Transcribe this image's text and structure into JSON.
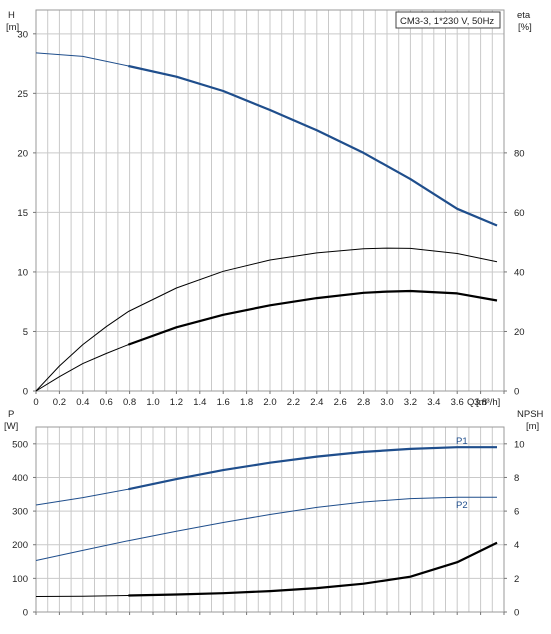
{
  "chart_data": [
    {
      "type": "line",
      "title": "CM3-3, 1*230 V, 50Hz",
      "xlabel": "Q",
      "xunit": "[m³/h]",
      "ylabel": "H",
      "yunit": "[m]",
      "y2label": "eta",
      "y2unit": "[%]",
      "xlim": [
        0,
        4.0
      ],
      "ylim": [
        0,
        32
      ],
      "y2lim": [
        0,
        128
      ],
      "x_ticks": [
        "0",
        "0.2",
        "0.4",
        "0.6",
        "0.8",
        "1.0",
        "1.2",
        "1.4",
        "1.6",
        "1.8",
        "2.0",
        "2.2",
        "2.4",
        "2.6",
        "2.8",
        "3.0",
        "3.2",
        "3.4",
        "3.6",
        "3.8"
      ],
      "y_ticks": [
        "0",
        "5",
        "10",
        "15",
        "20",
        "25",
        "30"
      ],
      "y2_ticks": [
        "0",
        "20",
        "40",
        "60",
        "80"
      ],
      "grid": true,
      "series": [
        {
          "axis": "left",
          "color": "#1f4e8c",
          "style": "head",
          "x": [
            0,
            0.4,
            0.79,
            1.2,
            1.6,
            2.0,
            2.4,
            2.8,
            3.2,
            3.6,
            3.94
          ],
          "values": [
            28.4,
            28.1,
            27.3,
            26.4,
            25.2,
            23.6,
            21.9,
            20.0,
            17.8,
            15.3,
            13.9
          ],
          "bold_from": 0.79
        },
        {
          "axis": "right",
          "color": "#000000",
          "style": "thin",
          "x": [
            0,
            0.2,
            0.4,
            0.6,
            0.79,
            1.2,
            1.6,
            2.0,
            2.4,
            2.8,
            3.0,
            3.2,
            3.6,
            3.94
          ],
          "values": [
            0,
            8.4,
            15.6,
            21.6,
            26.7,
            34.6,
            40.2,
            44.0,
            46.4,
            47.8,
            48.0,
            47.9,
            46.2,
            43.4
          ]
        },
        {
          "axis": "right",
          "color": "#000000",
          "style": "efficiency",
          "x": [
            0,
            0.2,
            0.4,
            0.6,
            0.79,
            1.2,
            1.6,
            2.0,
            2.4,
            2.8,
            3.0,
            3.2,
            3.6,
            3.94
          ],
          "values": [
            0,
            4.8,
            9.2,
            12.6,
            15.6,
            21.4,
            25.6,
            28.8,
            31.2,
            33.0,
            33.4,
            33.6,
            32.8,
            30.4
          ],
          "bold_from": 0.79
        }
      ]
    },
    {
      "type": "line",
      "xlim": [
        0,
        4.0
      ],
      "ylabel": "P",
      "yunit": "[W]",
      "y2label": "NPSH",
      "y2unit": "[m]",
      "ylim": [
        0,
        550
      ],
      "y2lim": [
        0,
        11
      ],
      "y_ticks": [
        "0",
        "100",
        "200",
        "300",
        "400",
        "500"
      ],
      "y2_ticks": [
        "0",
        "2",
        "4",
        "6",
        "8",
        "10"
      ],
      "grid": true,
      "series": [
        {
          "name": "P1",
          "axis": "left",
          "color": "#1f4e8c",
          "style": "power",
          "x": [
            0,
            0.4,
            0.79,
            1.2,
            1.6,
            2.0,
            2.4,
            2.8,
            3.2,
            3.6,
            3.94
          ],
          "values": [
            318,
            340,
            365,
            395,
            422,
            444,
            462,
            476,
            485,
            490,
            490
          ],
          "bold_from": 0.79
        },
        {
          "name": "P2",
          "axis": "left",
          "color": "#1f4e8c",
          "style": "thin",
          "x": [
            0,
            0.4,
            0.79,
            1.2,
            1.6,
            2.0,
            2.4,
            2.8,
            3.2,
            3.6,
            3.94
          ],
          "values": [
            153,
            183,
            212,
            240,
            266,
            290,
            311,
            327,
            337,
            341,
            341
          ]
        },
        {
          "axis": "right",
          "color": "#000000",
          "style": "npsh",
          "x": [
            0,
            0.4,
            0.79,
            1.2,
            1.6,
            2.0,
            2.4,
            2.8,
            3.2,
            3.6,
            3.94
          ],
          "values": [
            0.92,
            0.94,
            0.98,
            1.04,
            1.12,
            1.24,
            1.42,
            1.68,
            2.1,
            2.96,
            4.12
          ],
          "bold_from": 0.79
        }
      ]
    }
  ]
}
